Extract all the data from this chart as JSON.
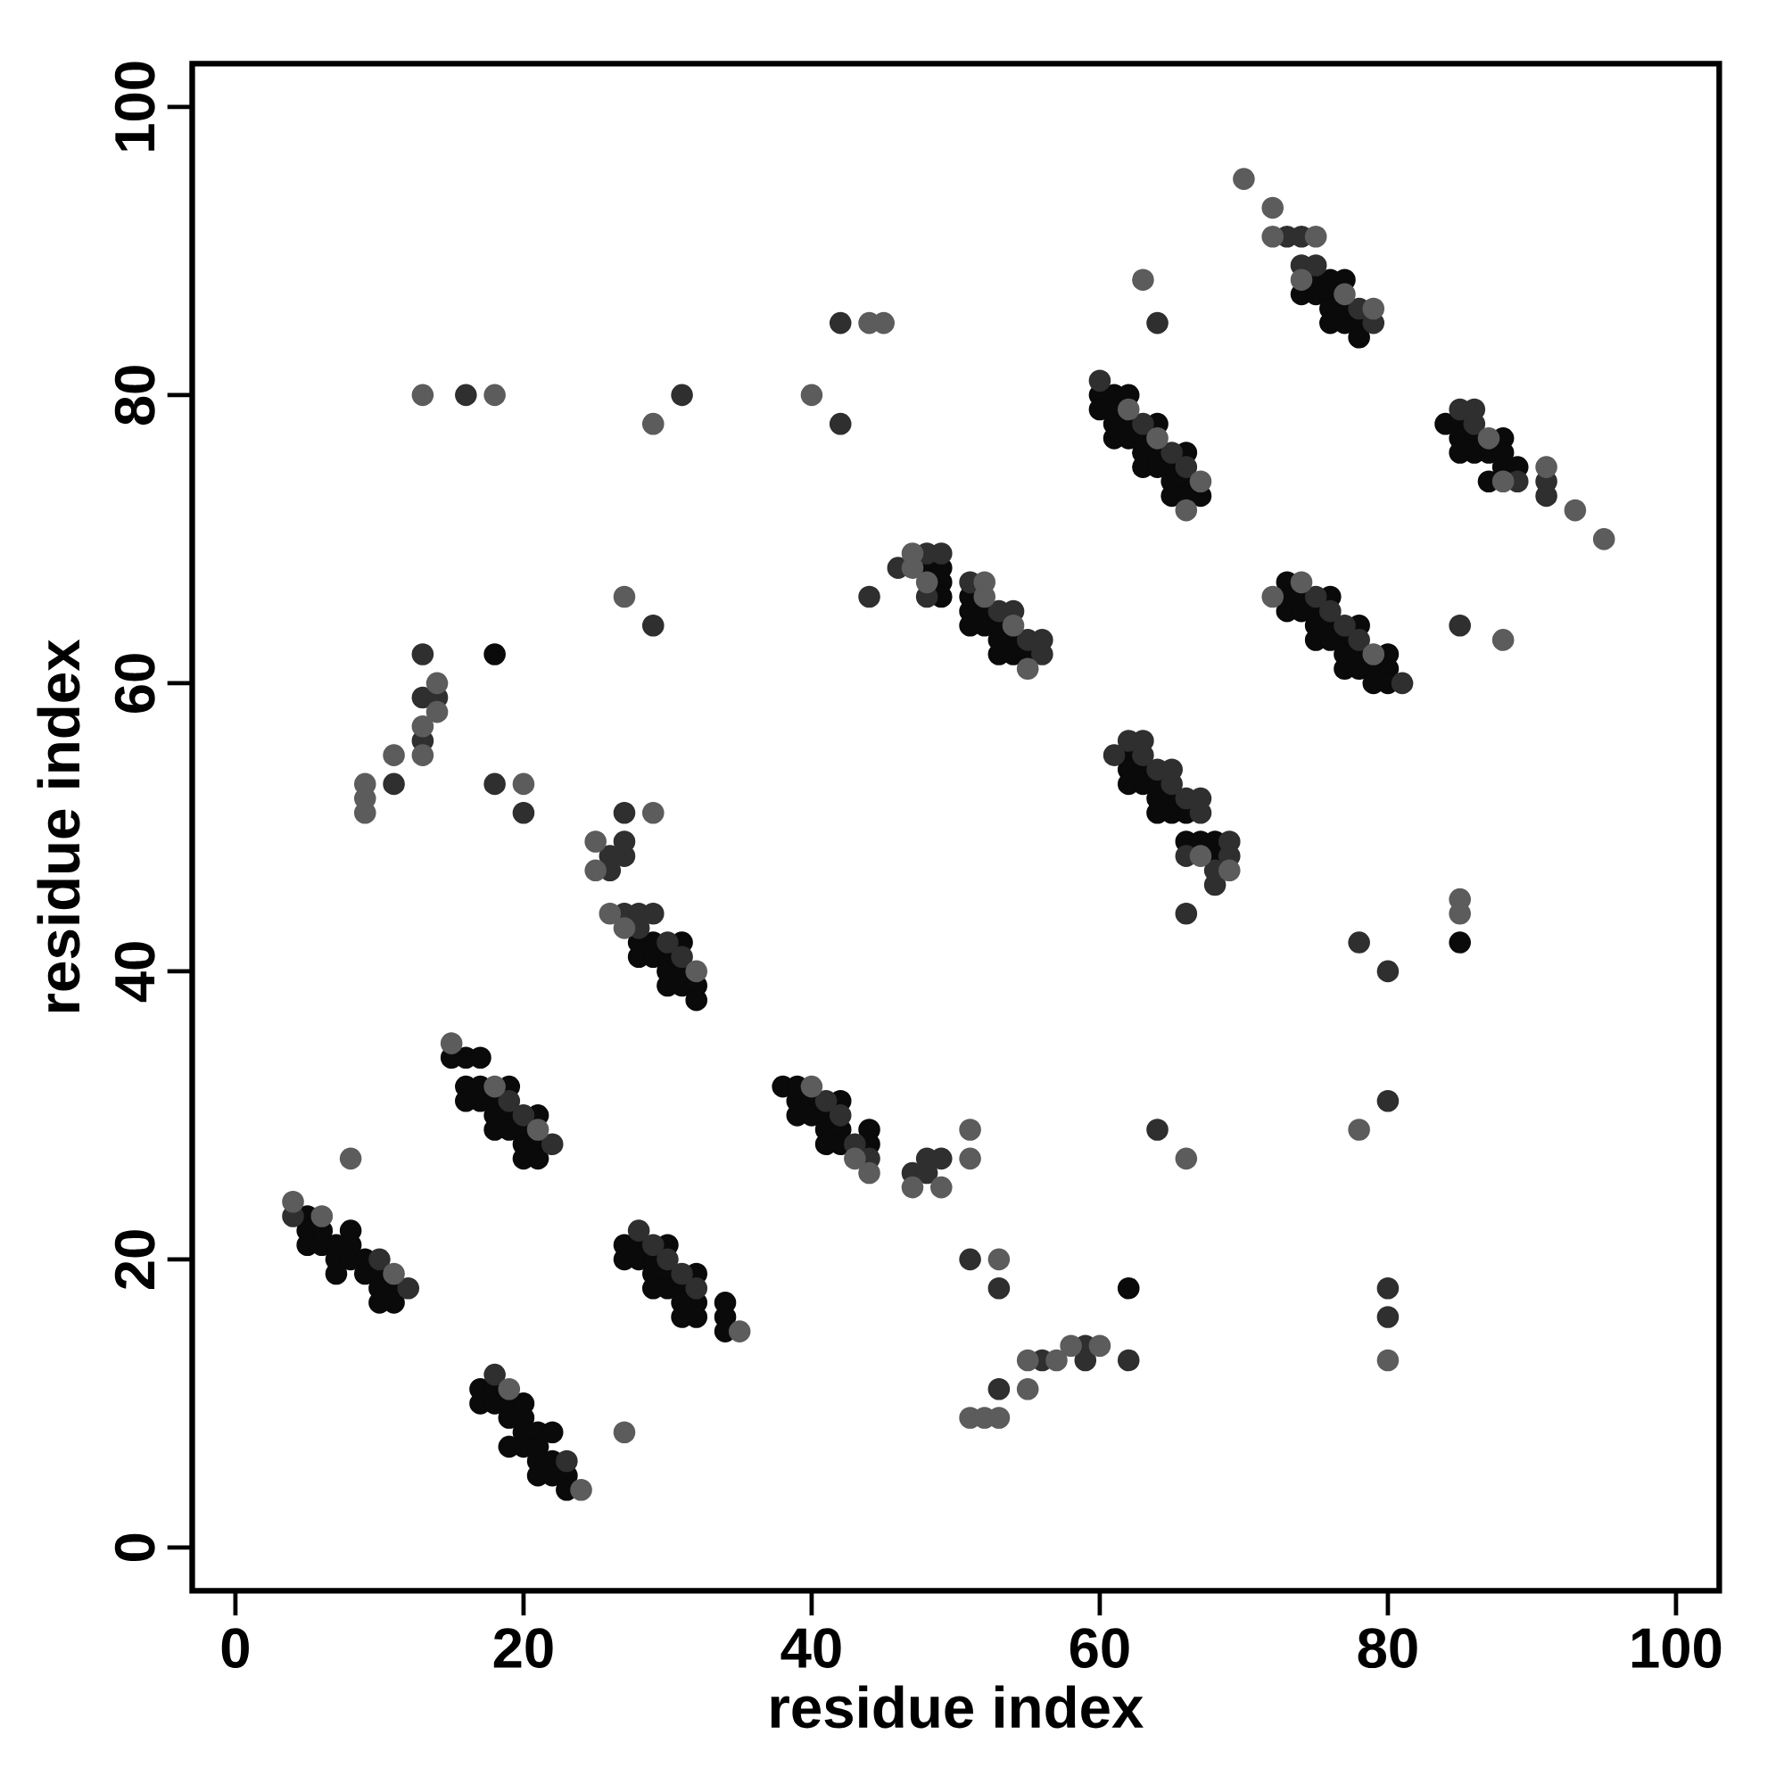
{
  "chart_data": {
    "type": "scatter",
    "xlabel": "residue index",
    "ylabel": "residue index",
    "xlim": [
      -3,
      103
    ],
    "ylim": [
      -3,
      103
    ],
    "xticks": [
      0,
      20,
      40,
      60,
      80,
      100
    ],
    "yticks": [
      0,
      20,
      40,
      60,
      80,
      100
    ],
    "marker": "circle",
    "series": [
      {
        "color": "#0a0a0a",
        "x": [
          5,
          5,
          6,
          8,
          5,
          6,
          7,
          8,
          7,
          8,
          9,
          7,
          9,
          10,
          10,
          11,
          10,
          11,
          17,
          18,
          17,
          18,
          19,
          20,
          19,
          20,
          20,
          21,
          22,
          19,
          20,
          21,
          21,
          22,
          21,
          22,
          23,
          23,
          15,
          16,
          17,
          16,
          17,
          19,
          16,
          17,
          18,
          18,
          19,
          21,
          18,
          19,
          20,
          20,
          21,
          20,
          21,
          27,
          28,
          30,
          27,
          28,
          29,
          29,
          30,
          32,
          29,
          30,
          31,
          31,
          32,
          34,
          31,
          32,
          34,
          34,
          28,
          29,
          31,
          28,
          29,
          30,
          30,
          31,
          30,
          31,
          32,
          32,
          38,
          39,
          39,
          40,
          42,
          39,
          40,
          41,
          41,
          42,
          44,
          41,
          42,
          44,
          48,
          49,
          49,
          49,
          51,
          51,
          52,
          51,
          52,
          53,
          53,
          54,
          53,
          54,
          55,
          60,
          61,
          62,
          60,
          61,
          61,
          62,
          64,
          61,
          62,
          63,
          63,
          64,
          66,
          63,
          64,
          65,
          65,
          66,
          65,
          66,
          67,
          73,
          73,
          74,
          76,
          73,
          74,
          75,
          75,
          76,
          78,
          75,
          76,
          77,
          77,
          78,
          80,
          77,
          78,
          79,
          80,
          79,
          80,
          62,
          62,
          63,
          62,
          63,
          64,
          64,
          65,
          64,
          65,
          66,
          66,
          67,
          68,
          68,
          75,
          76,
          77,
          74,
          75,
          76,
          76,
          77,
          76,
          77,
          78,
          78,
          84,
          85,
          85,
          86,
          88,
          85,
          86,
          87,
          88,
          88,
          89,
          87,
          18,
          62,
          85
        ],
        "values": [
          23,
          22,
          22,
          22,
          21,
          21,
          21,
          21,
          20,
          20,
          20,
          19,
          19,
          19,
          18,
          18,
          17,
          17,
          11,
          11,
          10,
          10,
          10,
          10,
          9,
          9,
          8,
          8,
          8,
          7,
          7,
          7,
          6,
          6,
          5,
          5,
          5,
          4,
          34,
          34,
          34,
          32,
          32,
          32,
          31,
          31,
          31,
          30,
          30,
          30,
          29,
          29,
          29,
          28,
          28,
          27,
          27,
          21,
          21,
          21,
          20,
          20,
          20,
          19,
          19,
          19,
          18,
          18,
          18,
          17,
          17,
          17,
          16,
          16,
          16,
          15,
          42,
          42,
          42,
          41,
          41,
          41,
          40,
          40,
          39,
          39,
          39,
          38,
          32,
          32,
          31,
          31,
          31,
          30,
          30,
          30,
          29,
          29,
          29,
          28,
          28,
          28,
          68,
          68,
          67,
          66,
          66,
          65,
          65,
          64,
          64,
          64,
          63,
          63,
          62,
          62,
          62,
          80,
          80,
          80,
          79,
          79,
          78,
          78,
          78,
          77,
          77,
          77,
          76,
          76,
          76,
          75,
          75,
          75,
          74,
          74,
          73,
          73,
          73,
          67,
          66,
          66,
          66,
          65,
          65,
          65,
          64,
          64,
          64,
          63,
          63,
          63,
          62,
          62,
          62,
          61,
          61,
          61,
          61,
          60,
          60,
          55,
          54,
          54,
          53,
          53,
          53,
          52,
          52,
          51,
          51,
          51,
          49,
          49,
          49,
          48,
          88,
          88,
          88,
          87,
          87,
          87,
          86,
          86,
          85,
          85,
          85,
          84,
          78,
          78,
          77,
          77,
          77,
          76,
          76,
          76,
          76,
          75,
          75,
          74,
          62,
          18,
          42
        ]
      },
      {
        "color": "#2f2f2f",
        "x": [
          4,
          10,
          12,
          18,
          23,
          19,
          20,
          22,
          28,
          29,
          30,
          31,
          32,
          27,
          26,
          27,
          26,
          27,
          28,
          29,
          28,
          30,
          31,
          16,
          31,
          42,
          42,
          64,
          29,
          13,
          13,
          14,
          13,
          11,
          18,
          20,
          27,
          73,
          74,
          74,
          75,
          78,
          79,
          60,
          63,
          65,
          66,
          48,
          49,
          46,
          48,
          44,
          51,
          53,
          54,
          55,
          56,
          56,
          75,
          76,
          77,
          78,
          81,
          62,
          63,
          61,
          63,
          64,
          65,
          65,
          66,
          67,
          67,
          69,
          66,
          69,
          68,
          68,
          66,
          41,
          42,
          43,
          44,
          48,
          49,
          47,
          48,
          64,
          51,
          53,
          59,
          56,
          59,
          62,
          53,
          78,
          80,
          80,
          80,
          80,
          85,
          86,
          86,
          89,
          91,
          91,
          85
        ],
        "values": [
          23,
          20,
          18,
          12,
          6,
          31,
          30,
          28,
          22,
          21,
          20,
          19,
          18,
          49,
          48,
          48,
          47,
          44,
          44,
          44,
          43,
          42,
          41,
          80,
          80,
          85,
          78,
          85,
          64,
          62,
          59,
          59,
          56,
          53,
          53,
          51,
          51,
          91,
          91,
          89,
          89,
          86,
          85,
          81,
          78,
          76,
          75,
          69,
          69,
          68,
          66,
          66,
          67,
          65,
          65,
          63,
          63,
          62,
          66,
          65,
          64,
          63,
          60,
          56,
          56,
          55,
          55,
          54,
          54,
          53,
          52,
          52,
          51,
          49,
          48,
          48,
          47,
          46,
          44,
          31,
          30,
          28,
          27,
          27,
          27,
          26,
          26,
          29,
          20,
          18,
          14,
          13,
          13,
          13,
          11,
          42,
          40,
          31,
          18,
          16,
          79,
          79,
          78,
          74,
          74,
          73,
          64
        ]
      },
      {
        "color": "#5c5c5c",
        "x": [
          4,
          6,
          11,
          19,
          24,
          27,
          8,
          15,
          18,
          21,
          35,
          25,
          25,
          26,
          27,
          32,
          13,
          18,
          29,
          40,
          27,
          14,
          14,
          13,
          11,
          13,
          9,
          20,
          9,
          9,
          29,
          70,
          72,
          72,
          75,
          63,
          74,
          77,
          79,
          44,
          45,
          62,
          64,
          67,
          66,
          47,
          47,
          48,
          52,
          52,
          54,
          55,
          74,
          72,
          79,
          67,
          69,
          40,
          43,
          44,
          47,
          49,
          51,
          51,
          53,
          58,
          60,
          55,
          57,
          55,
          51,
          52,
          53,
          85,
          85,
          78,
          80,
          66,
          87,
          88,
          91,
          93,
          95,
          88
        ],
        "values": [
          24,
          23,
          19,
          11,
          4,
          8,
          27,
          35,
          32,
          29,
          15,
          49,
          47,
          44,
          43,
          40,
          80,
          80,
          78,
          80,
          66,
          60,
          58,
          57,
          55,
          55,
          53,
          53,
          52,
          51,
          51,
          95,
          93,
          91,
          91,
          88,
          88,
          87,
          86,
          85,
          85,
          79,
          77,
          74,
          72,
          69,
          68,
          67,
          67,
          66,
          64,
          61,
          67,
          66,
          62,
          48,
          47,
          32,
          27,
          26,
          25,
          25,
          29,
          27,
          20,
          14,
          14,
          13,
          13,
          11,
          9,
          9,
          9,
          45,
          44,
          29,
          13,
          27,
          77,
          74,
          75,
          72,
          70,
          63
        ]
      }
    ]
  }
}
